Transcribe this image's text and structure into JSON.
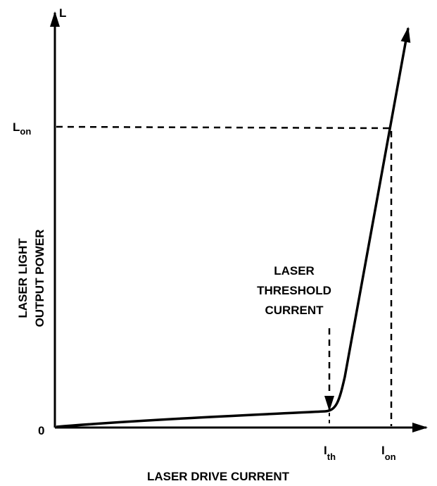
{
  "diagram": {
    "y_axis_symbol": "L",
    "l_on": {
      "base": "L",
      "sub": "on"
    },
    "origin": "0",
    "i_th": {
      "base": "I",
      "sub": "th"
    },
    "i_on": {
      "base": "I",
      "sub": "on"
    },
    "y_axis_label": [
      "LASER LIGHT",
      "OUTPUT POWER"
    ],
    "threshold_label": [
      "LASER",
      "THRESHOLD",
      "CURRENT"
    ],
    "x_axis_label": "LASER DRIVE CURRENT"
  }
}
